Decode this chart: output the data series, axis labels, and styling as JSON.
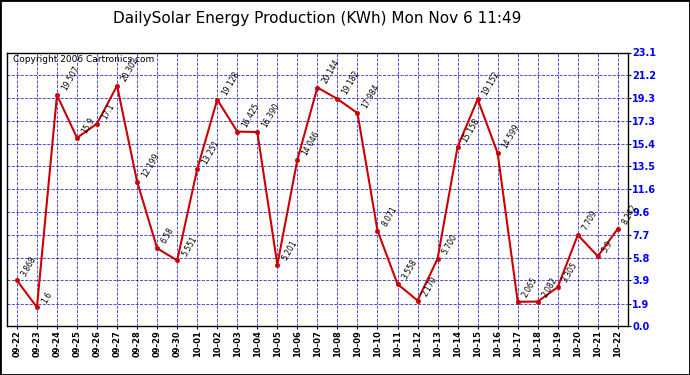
{
  "title": "DailySolar Energy Production (KWh) Mon Nov 6 11:49",
  "copyright": "Copyright 2006 Cartronics.com",
  "labels": [
    "09-22",
    "09-23",
    "09-24",
    "09-25",
    "09-26",
    "09-27",
    "09-28",
    "09-29",
    "09-30",
    "10-01",
    "10-02",
    "10-03",
    "10-04",
    "10-05",
    "10-06",
    "10-07",
    "10-08",
    "10-09",
    "10-10",
    "10-11",
    "10-12",
    "10-13",
    "10-14",
    "10-15",
    "10-16",
    "10-17",
    "10-18",
    "10-19",
    "10-20",
    "10-21",
    "10-22"
  ],
  "values": [
    3.868,
    1.6,
    19.507,
    15.9,
    17.1,
    20.302,
    12.199,
    6.58,
    5.551,
    13.251,
    19.128,
    16.425,
    16.39,
    5.201,
    14.046,
    20.144,
    19.182,
    17.984,
    8.071,
    3.558,
    2.17,
    5.7,
    15.158,
    19.152,
    14.599,
    2.065,
    2.082,
    3.305,
    7.709,
    5.9,
    8.242
  ],
  "value_labels": [
    "3.868",
    "1.6",
    "19.507",
    "15.9",
    "17.1",
    "20.302",
    "12.199",
    "6.58",
    "5.551",
    "13.251",
    "19.128",
    "16.425",
    "16.390",
    "5.201",
    "14.046",
    "20.144",
    "19.182",
    "17.984",
    "8.071",
    "3.558",
    "2.170",
    "5.700",
    "15.158",
    "19.152",
    "14.599",
    "2.065",
    "2.082",
    "3.305",
    "7.709",
    "5.9",
    "8.242"
  ],
  "ylim": [
    0.0,
    23.1
  ],
  "yticks": [
    0.0,
    1.9,
    3.9,
    5.8,
    7.7,
    9.6,
    11.6,
    13.5,
    15.4,
    17.3,
    19.3,
    21.2,
    23.1
  ],
  "line_color": "#cc0000",
  "marker_color": "#cc0000",
  "bg_color": "#ffffff",
  "plot_bg_color": "#ffffff",
  "grid_color": "#0000cc",
  "title_color": "#000000",
  "copyright_color": "#000000",
  "ytick_color": "#0000ff",
  "label_font_size": 7.0,
  "title_font_size": 11.0,
  "copyright_font_size": 6.5
}
